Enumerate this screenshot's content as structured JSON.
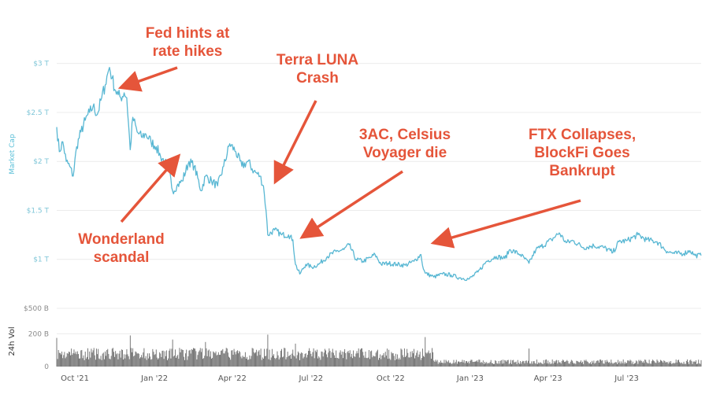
{
  "chart_data": {
    "type": "line",
    "title": "",
    "ylabel": "Market Cap",
    "volume_label": "24h Vol",
    "colors": {
      "line": "#58b7d3",
      "volume": "#6b6b6b",
      "annotation": "#e5553a",
      "axis_text": "#7fc6d8"
    },
    "y_ticks": [
      "$3 T",
      "$2.5 T",
      "$2 T",
      "$1.5 T",
      "$1 T",
      "$500 B"
    ],
    "y_tick_values": [
      3000,
      2500,
      2000,
      1500,
      1000,
      500
    ],
    "ylim": [
      500,
      3150
    ],
    "volume_ticks": [
      "200 B",
      "0"
    ],
    "volume_tick_values": [
      200,
      0
    ],
    "volume_ylim": [
      0,
      250
    ],
    "x_ticks": [
      "Oct '21",
      "Jan '22",
      "Apr '22",
      "Jul '22",
      "Oct '22",
      "Jan '23",
      "Apr '23",
      "Jul '23"
    ],
    "x_tick_dates": [
      "2021-10-01",
      "2022-01-01",
      "2022-04-01",
      "2022-07-01",
      "2022-10-01",
      "2023-01-01",
      "2023-04-01",
      "2023-07-01"
    ],
    "xlim": [
      "2021-09-10",
      "2023-09-25"
    ],
    "grid": true,
    "series": [
      {
        "unit": "$B",
        "points": [
          [
            "2021-09-10",
            2350
          ],
          [
            "2021-09-13",
            2100
          ],
          [
            "2021-09-17",
            2200
          ],
          [
            "2021-09-21",
            2000
          ],
          [
            "2021-09-25",
            1950
          ],
          [
            "2021-09-29",
            1850
          ],
          [
            "2021-10-03",
            2150
          ],
          [
            "2021-10-08",
            2300
          ],
          [
            "2021-10-13",
            2420
          ],
          [
            "2021-10-18",
            2500
          ],
          [
            "2021-10-22",
            2560
          ],
          [
            "2021-10-27",
            2480
          ],
          [
            "2021-11-01",
            2650
          ],
          [
            "2021-11-05",
            2780
          ],
          [
            "2021-11-08",
            2900
          ],
          [
            "2021-11-10",
            2960
          ],
          [
            "2021-11-13",
            2850
          ],
          [
            "2021-11-17",
            2720
          ],
          [
            "2021-11-20",
            2680
          ],
          [
            "2021-11-23",
            2650
          ],
          [
            "2021-11-27",
            2700
          ],
          [
            "2021-11-30",
            2650
          ],
          [
            "2021-12-04",
            2120
          ],
          [
            "2021-12-07",
            2450
          ],
          [
            "2021-12-12",
            2300
          ],
          [
            "2021-12-17",
            2250
          ],
          [
            "2021-12-22",
            2280
          ],
          [
            "2021-12-28",
            2200
          ],
          [
            "2022-01-03",
            2150
          ],
          [
            "2022-01-08",
            2050
          ],
          [
            "2022-01-13",
            2000
          ],
          [
            "2022-01-18",
            1900
          ],
          [
            "2022-01-22",
            1700
          ],
          [
            "2022-01-27",
            1750
          ],
          [
            "2022-02-02",
            1800
          ],
          [
            "2022-02-10",
            2000
          ],
          [
            "2022-02-16",
            1950
          ],
          [
            "2022-02-24",
            1700
          ],
          [
            "2022-03-01",
            1850
          ],
          [
            "2022-03-08",
            1800
          ],
          [
            "2022-03-15",
            1750
          ],
          [
            "2022-03-22",
            1950
          ],
          [
            "2022-03-29",
            2180
          ],
          [
            "2022-04-05",
            2100
          ],
          [
            "2022-04-12",
            1950
          ],
          [
            "2022-04-19",
            2000
          ],
          [
            "2022-04-26",
            1900
          ],
          [
            "2022-05-03",
            1850
          ],
          [
            "2022-05-07",
            1750
          ],
          [
            "2022-05-10",
            1500
          ],
          [
            "2022-05-12",
            1250
          ],
          [
            "2022-05-20",
            1300
          ],
          [
            "2022-05-28",
            1250
          ],
          [
            "2022-06-05",
            1250
          ],
          [
            "2022-06-10",
            1200
          ],
          [
            "2022-06-13",
            950
          ],
          [
            "2022-06-18",
            850
          ],
          [
            "2022-06-25",
            950
          ],
          [
            "2022-07-02",
            920
          ],
          [
            "2022-07-10",
            950
          ],
          [
            "2022-07-20",
            1030
          ],
          [
            "2022-07-30",
            1080
          ],
          [
            "2022-08-08",
            1100
          ],
          [
            "2022-08-14",
            1150
          ],
          [
            "2022-08-22",
            1000
          ],
          [
            "2022-08-30",
            980
          ],
          [
            "2022-09-08",
            1020
          ],
          [
            "2022-09-13",
            1050
          ],
          [
            "2022-09-20",
            950
          ],
          [
            "2022-09-28",
            960
          ],
          [
            "2022-10-08",
            950
          ],
          [
            "2022-10-18",
            940
          ],
          [
            "2022-10-28",
            980
          ],
          [
            "2022-11-05",
            1050
          ],
          [
            "2022-11-08",
            900
          ],
          [
            "2022-11-10",
            860
          ],
          [
            "2022-11-20",
            820
          ],
          [
            "2022-11-30",
            850
          ],
          [
            "2022-12-10",
            840
          ],
          [
            "2022-12-20",
            810
          ],
          [
            "2022-12-31",
            800
          ],
          [
            "2023-01-10",
            870
          ],
          [
            "2023-01-20",
            980
          ],
          [
            "2023-01-31",
            1030
          ],
          [
            "2023-02-10",
            1010
          ],
          [
            "2023-02-16",
            1100
          ],
          [
            "2023-02-28",
            1050
          ],
          [
            "2023-03-10",
            960
          ],
          [
            "2023-03-18",
            1100
          ],
          [
            "2023-03-24",
            1130
          ],
          [
            "2023-04-05",
            1200
          ],
          [
            "2023-04-14",
            1270
          ],
          [
            "2023-04-22",
            1170
          ],
          [
            "2023-04-30",
            1190
          ],
          [
            "2023-05-12",
            1120
          ],
          [
            "2023-05-24",
            1140
          ],
          [
            "2023-06-05",
            1120
          ],
          [
            "2023-06-15",
            1070
          ],
          [
            "2023-06-22",
            1180
          ],
          [
            "2023-07-01",
            1190
          ],
          [
            "2023-07-14",
            1250
          ],
          [
            "2023-07-24",
            1200
          ],
          [
            "2023-08-05",
            1180
          ],
          [
            "2023-08-17",
            1080
          ],
          [
            "2023-08-25",
            1060
          ],
          [
            "2023-09-05",
            1060
          ],
          [
            "2023-09-12",
            1090
          ],
          [
            "2023-09-18",
            1040
          ],
          [
            "2023-09-25",
            1040
          ]
        ]
      }
    ],
    "volume_spikes": [
      [
        "2021-12-04",
        190
      ],
      [
        "2022-05-12",
        195
      ],
      [
        "2022-06-13",
        140
      ],
      [
        "2022-11-10",
        180
      ],
      [
        "2021-09-10",
        175
      ],
      [
        "2022-01-22",
        165
      ],
      [
        "2022-03-01",
        150
      ],
      [
        "2023-03-10",
        110
      ]
    ],
    "annotations": [
      {
        "lines": [
          "Fed hints at",
          "rate hikes"
        ],
        "date": "2021-11-11",
        "value": 2850
      },
      {
        "lines": [
          "Terra LUNA",
          "Crash"
        ],
        "date": "2022-05-09",
        "value": 1800
      },
      {
        "lines": [
          "3AC, Celsius",
          "Voyager die"
        ],
        "date": "2022-06-20",
        "value": 1250
      },
      {
        "lines": [
          "FTX Collapses,",
          "BlockFi Goes",
          "Bankrupt"
        ],
        "date": "2022-11-11",
        "value": 1020
      },
      {
        "lines": [
          "Wonderland",
          "scandal"
        ],
        "date": "2022-01-27",
        "value": 1900
      }
    ]
  }
}
